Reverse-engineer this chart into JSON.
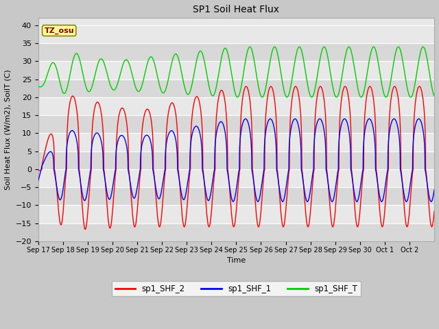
{
  "title": "SP1 Soil Heat Flux",
  "xlabel": "Time",
  "ylabel": "Soil Heat Flux (W/m2), SoilT (C)",
  "ylim": [
    -20,
    42
  ],
  "yticks": [
    -20,
    -15,
    -10,
    -5,
    0,
    5,
    10,
    15,
    20,
    25,
    30,
    35,
    40
  ],
  "xtick_labels": [
    "Sep 17",
    "Sep 18",
    "Sep 19",
    "Sep 20",
    "Sep 21",
    "Sep 22",
    "Sep 23",
    "Sep 24",
    "Sep 25",
    "Sep 26",
    "Sep 27",
    "Sep 28",
    "Sep 29",
    "Sep 30",
    "Oct 1",
    "Oct 2"
  ],
  "fig_bg_color": "#c8c8c8",
  "plot_bg_light": "#e8e8e8",
  "plot_bg_dark": "#d8d8d8",
  "grid_color": "#ffffff",
  "legend_entries": [
    "sp1_SHF_2",
    "sp1_SHF_1",
    "sp1_SHF_T"
  ],
  "legend_colors": [
    "#ff0000",
    "#0000ff",
    "#00cc00"
  ],
  "tz_label": "TZ_osu",
  "tz_box_color": "#ffff99",
  "tz_text_color": "#880000",
  "tz_box_edge": "#888800",
  "color_SHF2": "#ff0000",
  "color_SHF1": "#0000ff",
  "color_SHFT": "#00cc00",
  "n_days": 16,
  "points_per_day": 480
}
